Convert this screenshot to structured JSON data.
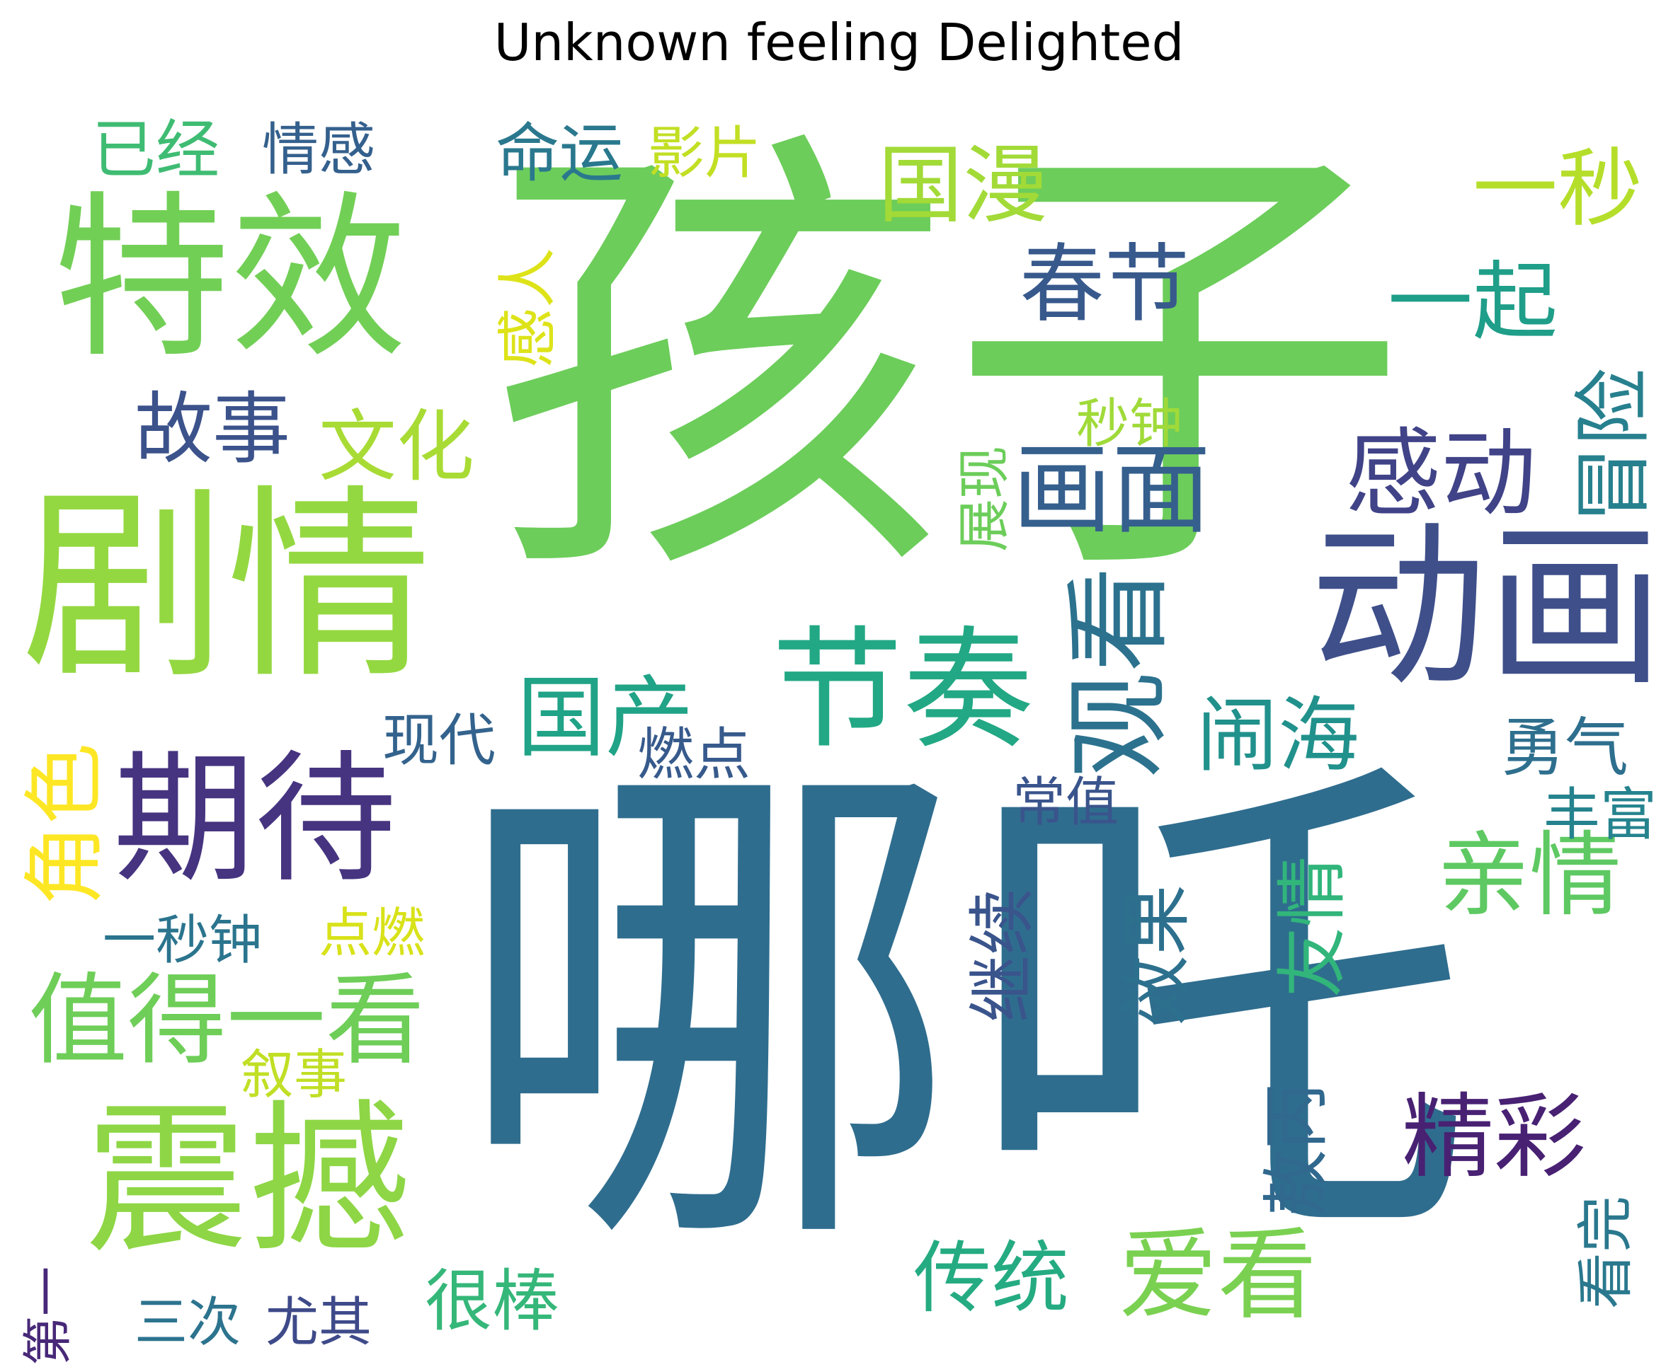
{
  "title": "Unknown feeling Delighted",
  "words": [
    {
      "text": "孩子",
      "color": "#6ccd5a",
      "rotate": false
    },
    {
      "text": "哪吒",
      "color": "#2f6d8e",
      "rotate": false
    },
    {
      "text": "剧情",
      "color": "#94d841",
      "rotate": false
    },
    {
      "text": "特效",
      "color": "#72cf56",
      "rotate": false
    },
    {
      "text": "动画",
      "color": "#3e4f8a",
      "rotate": false
    },
    {
      "text": "震撼",
      "color": "#8ed645",
      "rotate": false
    },
    {
      "text": "期待",
      "color": "#463480",
      "rotate": false
    },
    {
      "text": "节奏",
      "color": "#22a884",
      "rotate": false
    },
    {
      "text": "观看",
      "color": "#2c728e",
      "rotate": true
    },
    {
      "text": "画面",
      "color": "#355f8d",
      "rotate": false
    },
    {
      "text": "感动",
      "color": "#404387",
      "rotate": false
    },
    {
      "text": "春节",
      "color": "#38598c",
      "rotate": false
    },
    {
      "text": "国漫",
      "color": "#a2da37",
      "rotate": false
    },
    {
      "text": "一起",
      "color": "#1f9e89",
      "rotate": false
    },
    {
      "text": "一秒",
      "color": "#b5de2b",
      "rotate": false
    },
    {
      "text": "冒险",
      "color": "#27808e",
      "rotate": true
    },
    {
      "text": "值得一看",
      "color": "#6ece58",
      "rotate": false
    },
    {
      "text": "亲情",
      "color": "#5ec962",
      "rotate": false
    },
    {
      "text": "精彩",
      "color": "#482173",
      "rotate": false
    },
    {
      "text": "国产",
      "color": "#20a386",
      "rotate": false
    },
    {
      "text": "故事",
      "color": "#3b528b",
      "rotate": false
    },
    {
      "text": "文化",
      "color": "#a8db34",
      "rotate": false
    },
    {
      "text": "爱看",
      "color": "#7ad151",
      "rotate": false
    },
    {
      "text": "闹海",
      "color": "#21918c",
      "rotate": false
    },
    {
      "text": "角色",
      "color": "#fde725",
      "rotate": true
    },
    {
      "text": "传统",
      "color": "#25ab82",
      "rotate": false
    },
    {
      "text": "友情",
      "color": "#31b57b",
      "rotate": true
    },
    {
      "text": "效果",
      "color": "#2d708e",
      "rotate": true
    },
    {
      "text": "继续",
      "color": "#3a548c",
      "rotate": true
    },
    {
      "text": "敖丙",
      "color": "#31688e",
      "rotate": true
    },
    {
      "text": "很棒",
      "color": "#35b779",
      "rotate": false
    },
    {
      "text": "勇气",
      "color": "#2e6f8e",
      "rotate": false
    },
    {
      "text": "命运",
      "color": "#2a788e",
      "rotate": false
    },
    {
      "text": "已经",
      "color": "#3fbc73",
      "rotate": false
    },
    {
      "text": "情感",
      "color": "#34608d",
      "rotate": false
    },
    {
      "text": "影片",
      "color": "#c2df23",
      "rotate": false
    },
    {
      "text": "感人",
      "color": "#dde318",
      "rotate": true
    },
    {
      "text": "丰富",
      "color": "#25838e",
      "rotate": false
    },
    {
      "text": "看完",
      "color": "#2a788e",
      "rotate": true
    },
    {
      "text": "燃点",
      "color": "#375a8c",
      "rotate": false
    },
    {
      "text": "现代",
      "color": "#33638d",
      "rotate": false
    },
    {
      "text": "常值",
      "color": "#3a548c",
      "rotate": false
    },
    {
      "text": "展现",
      "color": "#6ccd5a",
      "rotate": true
    },
    {
      "text": "秒钟",
      "color": "#a0da39",
      "rotate": false
    },
    {
      "text": "一秒钟",
      "color": "#2b748e",
      "rotate": false
    },
    {
      "text": "点燃",
      "color": "#d8e219",
      "rotate": false
    },
    {
      "text": "叙事",
      "color": "#c0df25",
      "rotate": false
    },
    {
      "text": "三次",
      "color": "#2c738e",
      "rotate": false
    },
    {
      "text": "尤其",
      "color": "#3e4a89",
      "rotate": false
    },
    {
      "text": "第一",
      "color": "#482878",
      "rotate": true
    }
  ]
}
